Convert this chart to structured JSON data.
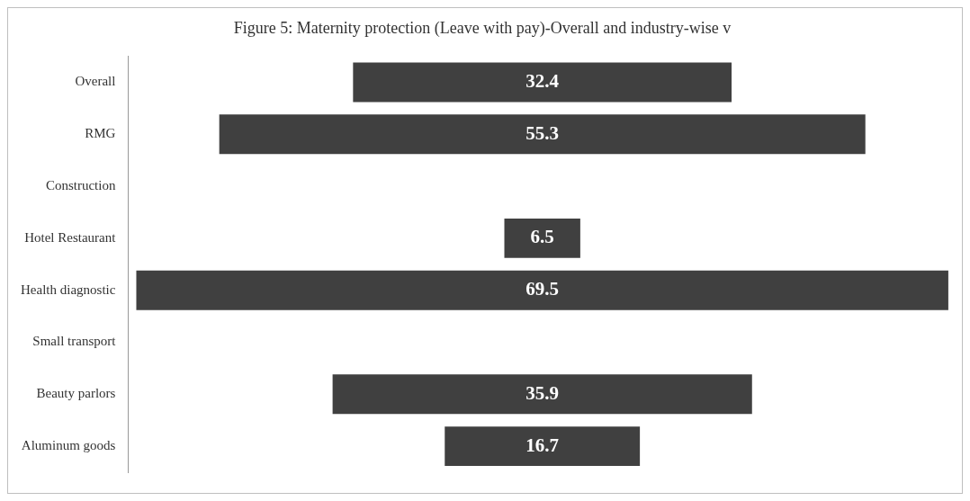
{
  "chart_data": {
    "type": "other",
    "title": "Figure 5: Maternity protection (Leave with pay)-Overall and industry-wise v",
    "categories": [
      "Overall",
      "RMG",
      "Construction",
      "Hotel Restaurant",
      "Health diagnostic",
      "Small transport",
      "Beauty parlors",
      "Aluminum goods"
    ],
    "values": [
      32.4,
      55.3,
      null,
      6.5,
      69.5,
      null,
      35.9,
      16.7
    ],
    "color": "#404040",
    "data_labels": true,
    "legend": false
  }
}
